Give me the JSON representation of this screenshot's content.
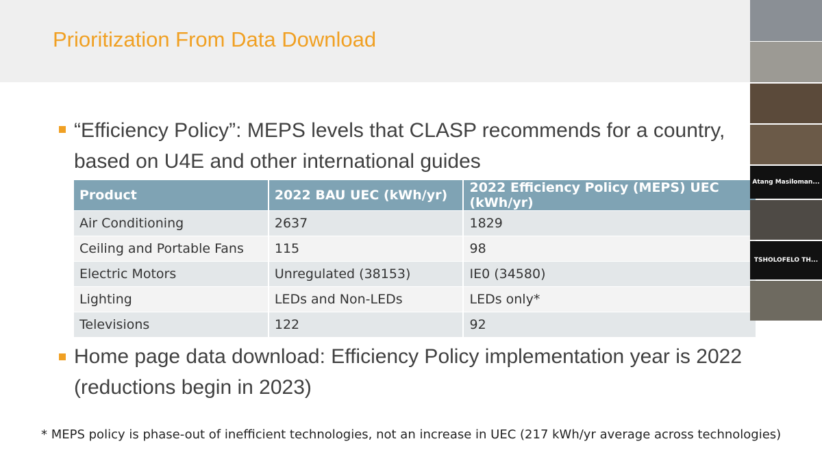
{
  "slide": {
    "title": "Prioritization From Data Download",
    "bullets": [
      "“Efficiency Policy”: MEPS levels that CLASP recommends for a country, based on U4E and other international guides",
      "Home page data download: Efficiency Policy implementation year is 2022 (reductions begin in 2023)"
    ],
    "table": {
      "header": [
        "Product",
        "2022 BAU UEC (kWh/yr)",
        "2022 Efficiency Policy (MEPS) UEC (kWh/yr)"
      ],
      "rows": [
        [
          "Air Conditioning",
          "2637",
          "1829"
        ],
        [
          "Ceiling and Portable Fans",
          "115",
          "98"
        ],
        [
          "Electric Motors",
          "Unregulated (38153)",
          "IE0 (34580)"
        ],
        [
          "Lighting",
          "LEDs and Non-LEDs",
          "LEDs only*"
        ],
        [
          "Televisions",
          "122",
          "92"
        ]
      ]
    },
    "footnote": "* MEPS policy is phase-out of inefficient technologies, not an increase in UEC (217 kWh/yr average across technologies)"
  },
  "participants": [
    "Atang Masiloman...",
    "TSHOLOFELO TH..."
  ]
}
